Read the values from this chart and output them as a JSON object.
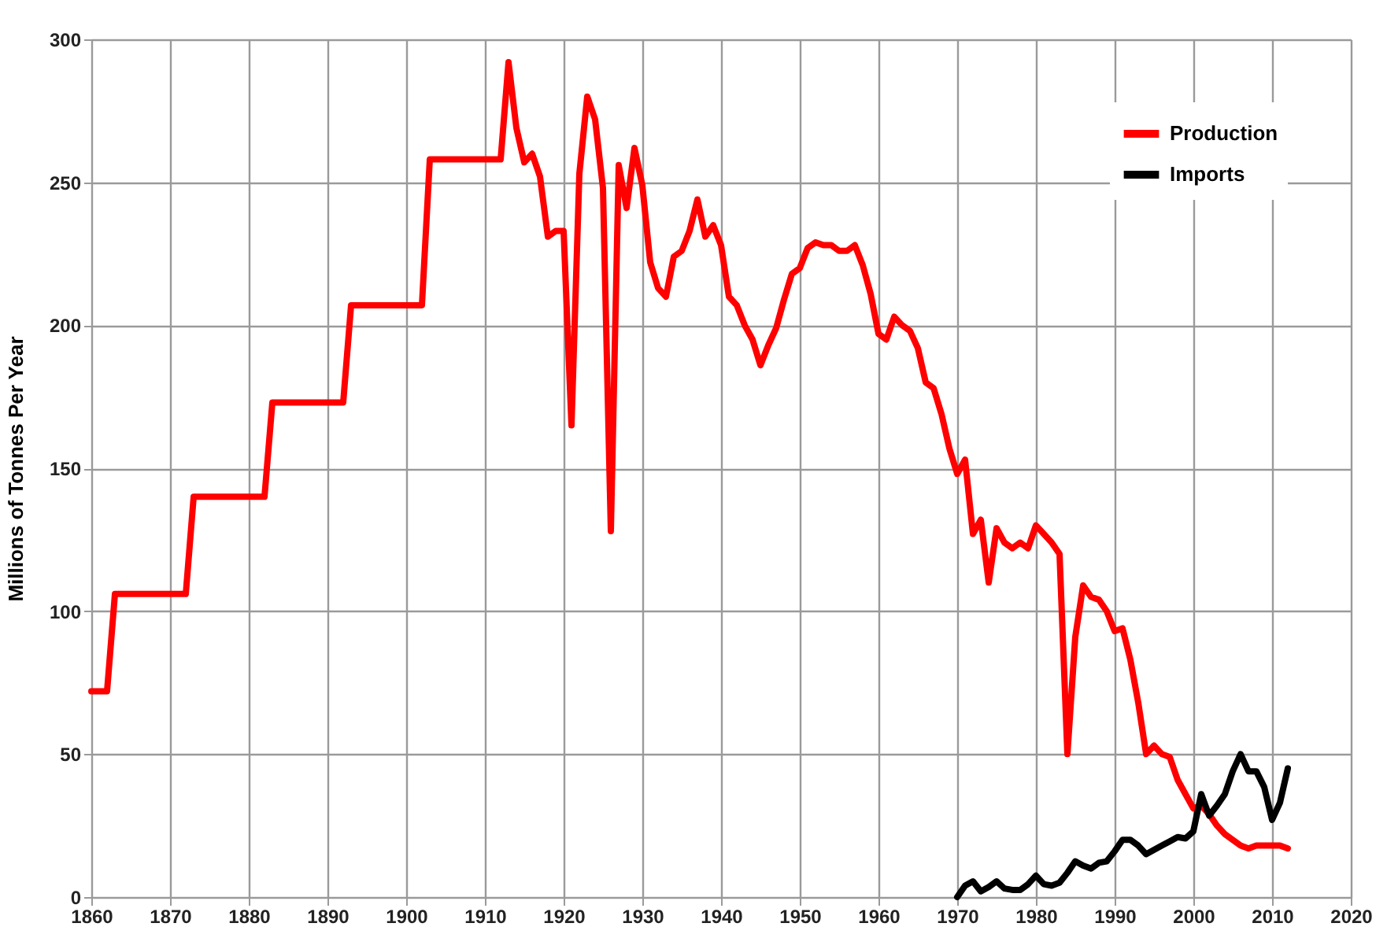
{
  "chart_data": {
    "type": "line",
    "ylabel": "Millions of Tonnes Per Year",
    "xlim": [
      1860,
      2020
    ],
    "xticks": [
      1860,
      1870,
      1880,
      1890,
      1900,
      1910,
      1920,
      1930,
      1940,
      1950,
      1960,
      1970,
      1980,
      1990,
      2000,
      2010,
      2020
    ],
    "ylim": [
      0,
      300
    ],
    "yticks": [
      0,
      50,
      100,
      150,
      200,
      250,
      300
    ],
    "grid": true,
    "legend": "top right",
    "line_style": "solid",
    "marker": "none",
    "series": [
      {
        "name": "Production",
        "color": "#ff0000",
        "x": [
          1860,
          1862,
          1863,
          1872,
          1873,
          1882,
          1883,
          1892,
          1893,
          1902,
          1903,
          1912,
          1913,
          1914,
          1915,
          1916,
          1917,
          1918,
          1919,
          1920,
          1921,
          1922,
          1923,
          1924,
          1925,
          1926,
          1927,
          1928,
          1929,
          1930,
          1931,
          1932,
          1933,
          1934,
          1935,
          1936,
          1937,
          1938,
          1939,
          1940,
          1941,
          1942,
          1943,
          1944,
          1945,
          1946,
          1947,
          1948,
          1949,
          1950,
          1951,
          1952,
          1953,
          1954,
          1955,
          1956,
          1957,
          1958,
          1959,
          1960,
          1961,
          1962,
          1963,
          1964,
          1965,
          1966,
          1967,
          1968,
          1969,
          1970,
          1971,
          1972,
          1973,
          1974,
          1975,
          1976,
          1977,
          1978,
          1979,
          1980,
          1981,
          1982,
          1983,
          1984,
          1985,
          1986,
          1987,
          1988,
          1989,
          1990,
          1991,
          1992,
          1993,
          1994,
          1995,
          1996,
          1997,
          1998,
          1999,
          2000,
          2001,
          2002,
          2003,
          2004,
          2005,
          2006,
          2007,
          2008,
          2009,
          2010,
          2011,
          2012
        ],
        "values": [
          72,
          72,
          106,
          106,
          140,
          140,
          173,
          173,
          207,
          207,
          258,
          258,
          292,
          269,
          257,
          260,
          252,
          231,
          233,
          233,
          165,
          253,
          280,
          272,
          248,
          128,
          256,
          241,
          262,
          249,
          222,
          213,
          210,
          224,
          226,
          233,
          244,
          231,
          235,
          228,
          210,
          207,
          200,
          195,
          186,
          193,
          199,
          209,
          218,
          220,
          227,
          229,
          228,
          228,
          226,
          226,
          228,
          221,
          211,
          197,
          195,
          203,
          200,
          198,
          192,
          180,
          178,
          169,
          157,
          148,
          153,
          127,
          132,
          110,
          129,
          124,
          122,
          124,
          122,
          130,
          127,
          124,
          120,
          50,
          91,
          109,
          105,
          104,
          100,
          93,
          94,
          83,
          68,
          50,
          53,
          50,
          49,
          41,
          36,
          31,
          32,
          29,
          25,
          22,
          20,
          18,
          17,
          18,
          18,
          18,
          18,
          17
        ]
      },
      {
        "name": "Imports",
        "color": "#000000",
        "x": [
          1970,
          1971,
          1972,
          1973,
          1974,
          1975,
          1976,
          1977,
          1978,
          1979,
          1980,
          1981,
          1982,
          1983,
          1984,
          1985,
          1986,
          1987,
          1988,
          1989,
          1990,
          1991,
          1992,
          1993,
          1994,
          1995,
          1996,
          1997,
          1998,
          1999,
          2000,
          2001,
          2002,
          2003,
          2004,
          2005,
          2006,
          2007,
          2008,
          2009,
          2010,
          2011,
          2012
        ],
        "values": [
          0,
          4,
          5.5,
          2,
          3.5,
          5.5,
          3,
          2.5,
          2.5,
          4.5,
          7.5,
          4.5,
          4,
          5,
          8.5,
          12.5,
          11,
          10,
          12,
          12.5,
          16,
          20,
          20,
          18,
          15,
          16.5,
          18,
          19.5,
          21,
          20.5,
          23,
          36,
          28.5,
          32,
          36,
          44,
          50,
          44,
          44,
          38.5,
          27,
          33,
          45
        ]
      }
    ]
  }
}
